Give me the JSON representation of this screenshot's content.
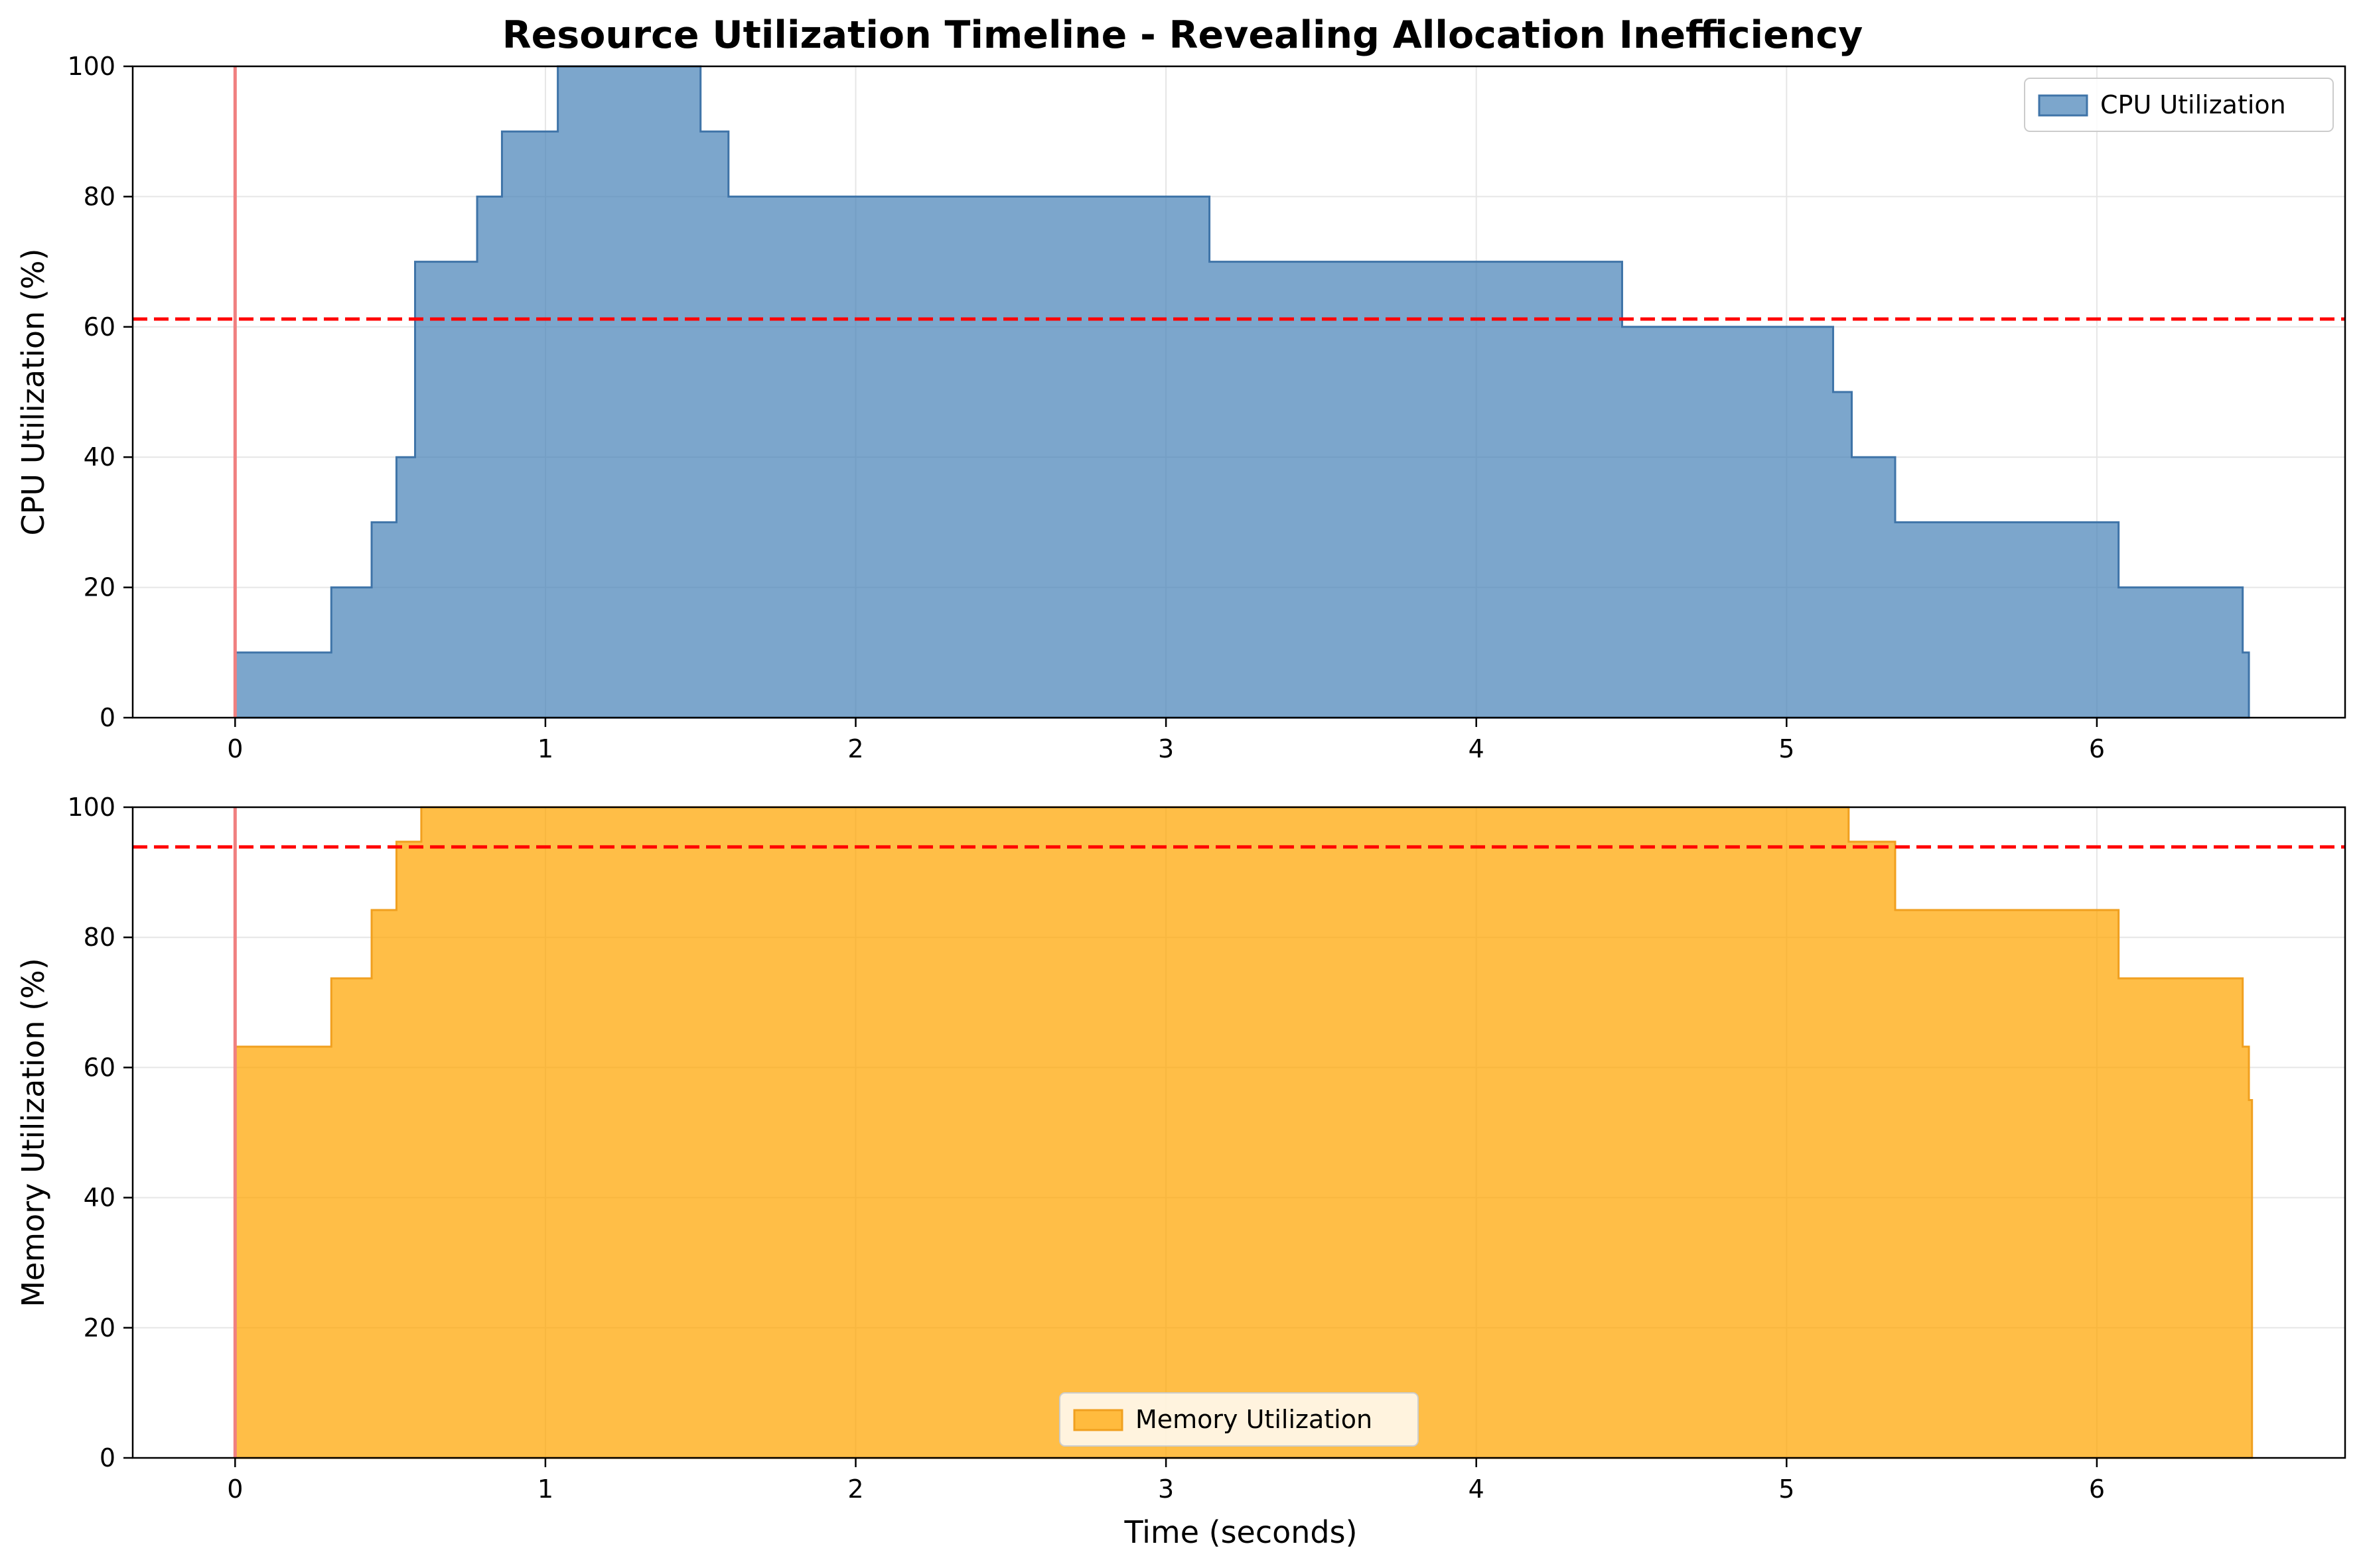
{
  "chart_data": {
    "type": "area",
    "title": "Resource Utilization Timeline - Revealing Allocation Inefficiency",
    "xlabel": "Time (seconds)",
    "xlim": [
      -0.33,
      6.8
    ],
    "xticks": [
      0,
      1,
      2,
      3,
      4,
      5,
      6
    ],
    "colors": {
      "cpu_fill": "#4a84b8",
      "cpu_line": "#3f74a8",
      "mem_fill": "#ffa500",
      "mem_line": "#f0a020",
      "threshold": "#ff0000",
      "start_line": "#f08080",
      "grid": "#e6e6e6"
    },
    "panels": [
      {
        "id": "cpu",
        "ylabel": "CPU Utilization (%)",
        "ylim": [
          0,
          100
        ],
        "yticks": [
          0,
          20,
          40,
          60,
          80,
          100
        ],
        "legend": "CPU Utilization",
        "legend_position": "upper-right",
        "threshold": 61.2,
        "start_marker": 0,
        "x": [
          0,
          0.31,
          0.44,
          0.52,
          0.58,
          0.78,
          0.86,
          1.04,
          1.5,
          1.59,
          3.14,
          4.47,
          5.15,
          5.21,
          5.35,
          6.07,
          6.47,
          6.49
        ],
        "values": [
          10,
          20,
          30,
          40,
          70,
          80,
          90,
          100,
          90,
          80,
          70,
          60,
          50,
          40,
          30,
          20,
          10,
          0
        ]
      },
      {
        "id": "memory",
        "ylabel": "Memory Utilization (%)",
        "ylim": [
          0,
          100
        ],
        "yticks": [
          0,
          20,
          40,
          60,
          80,
          100
        ],
        "legend": "Memory Utilization",
        "legend_position": "lower-center",
        "threshold": 93.9,
        "start_marker": 0,
        "x": [
          0,
          0.31,
          0.44,
          0.52,
          0.56,
          0.6,
          5.2,
          5.35,
          6.07,
          6.47,
          6.49,
          6.5
        ],
        "values": [
          63.2,
          73.7,
          84.2,
          94.7,
          94.7,
          100,
          94.7,
          84.2,
          73.7,
          63.2,
          55,
          0
        ]
      }
    ]
  }
}
